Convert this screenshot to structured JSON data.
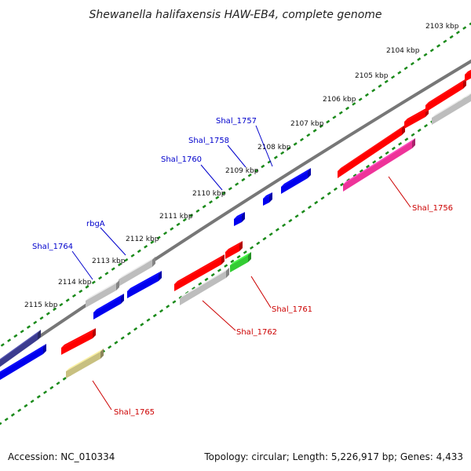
{
  "title": "Shewanella halifaxensis HAW-EB4, complete genome",
  "footer": {
    "accession": "Accession: NC_010334",
    "summary": "Topology: circular; Length: 5,226,917 bp; Genes: 4,433"
  },
  "colors": {
    "backbone": "#777777",
    "ticks": "#1a8a1a",
    "forward_label": "#0000cc",
    "reverse_label": "#cc0000",
    "red": "#ff0000",
    "blue": "#0000ee",
    "gray": "#bdbdbd",
    "green": "#33cc33",
    "magenta": "#ee3399",
    "navy": "#3b3b8f",
    "olive": "#c8c080"
  },
  "ruler": {
    "tick_labels": [
      "2103 kbp",
      "2104 kbp",
      "2105 kbp",
      "2106 kbp",
      "2107 kbp",
      "2108 kbp",
      "2109 kbp",
      "2110 kbp",
      "2111 kbp",
      "2112 kbp",
      "2113 kbp",
      "2114 kbp",
      "2115 kbp"
    ]
  },
  "gene_labels": {
    "forward": [
      "Shal_1757",
      "Shal_1758",
      "Shal_1760",
      "rbgA",
      "Shal_1764"
    ],
    "reverse": [
      "Shal_1756",
      "Shal_1761",
      "Shal_1762",
      "Shal_1765"
    ]
  }
}
